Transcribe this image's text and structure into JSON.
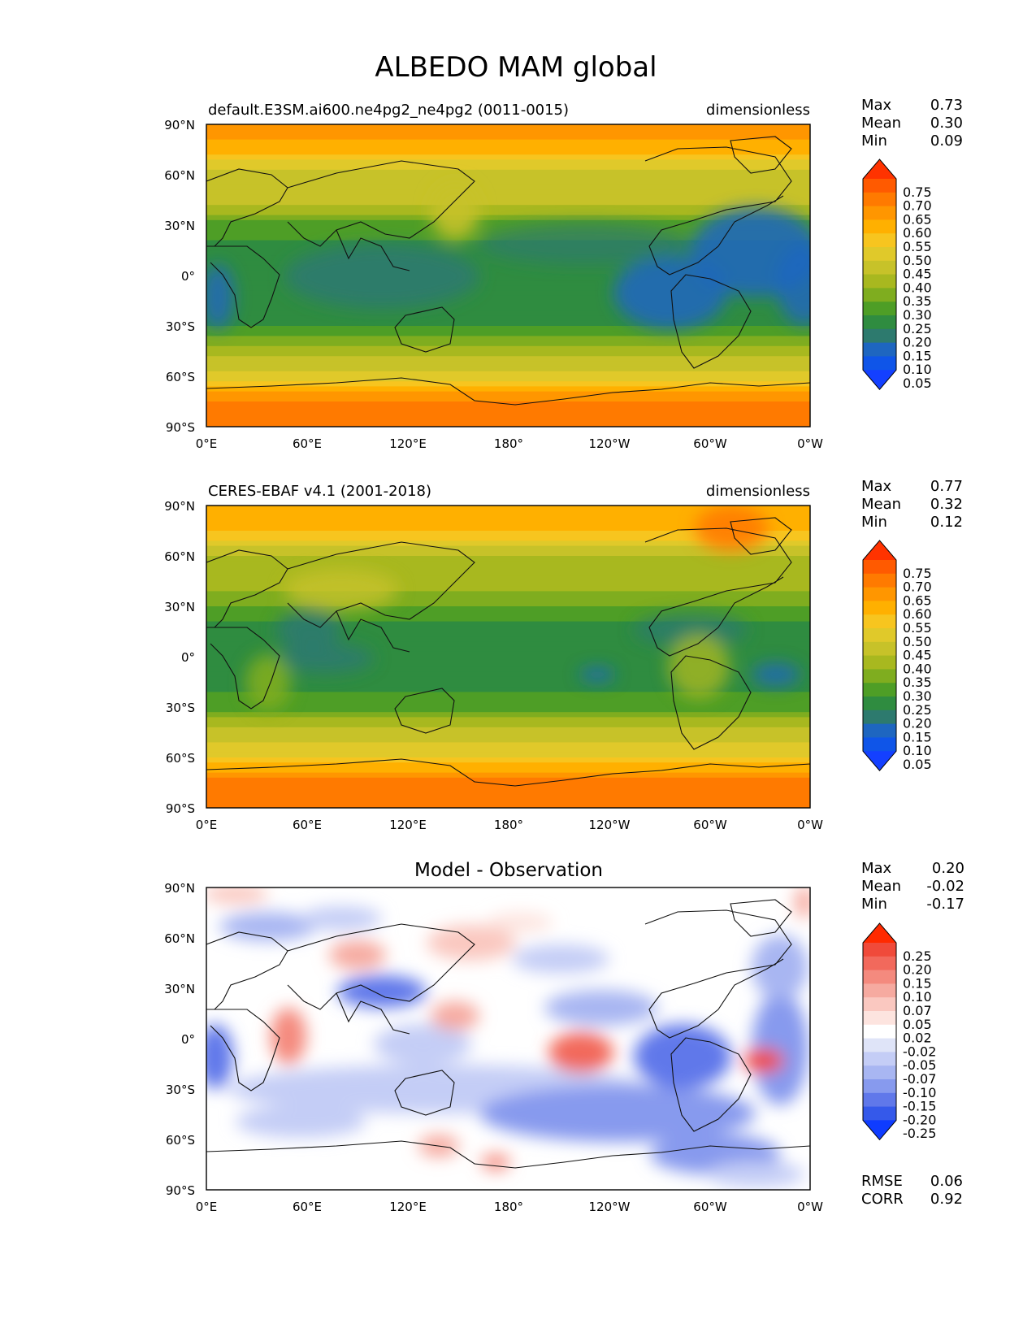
{
  "figure": {
    "title": "ALBEDO MAM global"
  },
  "axes": {
    "lat_labels": [
      "90°N",
      "60°N",
      "30°N",
      "0°",
      "30°S",
      "60°S",
      "90°S"
    ],
    "lon_labels": [
      "0°E",
      "60°E",
      "120°E",
      "180°",
      "120°W",
      "60°W",
      "0°W"
    ]
  },
  "chart_data": [
    {
      "type": "heatmap",
      "title": "default.E3SM.ai600.ne4pg2_ne4pg2 (0011-0015)",
      "units": "dimensionless",
      "xlabel": "",
      "ylabel": "",
      "xlim": [
        0,
        360
      ],
      "ylim": [
        -90,
        90
      ],
      "stats": [
        {
          "label": "Max",
          "value": "0.73"
        },
        {
          "label": "Mean",
          "value": "0.30"
        },
        {
          "label": "Min",
          "value": "0.09"
        }
      ],
      "colorbar": {
        "levels": [
          "0.75",
          "0.70",
          "0.65",
          "0.60",
          "0.55",
          "0.50",
          "0.45",
          "0.40",
          "0.35",
          "0.30",
          "0.25",
          "0.20",
          "0.15",
          "0.10",
          "0.05"
        ],
        "colors": [
          "#ff3300",
          "#ff5a00",
          "#ff7a00",
          "#ff9600",
          "#ffb000",
          "#f7c51f",
          "#e0c92a",
          "#c7c229",
          "#a8b81f",
          "#7fad1f",
          "#4e9e26",
          "#2f8c40",
          "#2d7a6e",
          "#1e66c0",
          "#0f55e8",
          "#1440ff"
        ]
      },
      "zonal_albedo": [
        {
          "lat": 90,
          "v": 0.62
        },
        {
          "lat": 75,
          "v": 0.58
        },
        {
          "lat": 60,
          "v": 0.4
        },
        {
          "lat": 45,
          "v": 0.42
        },
        {
          "lat": 30,
          "v": 0.28
        },
        {
          "lat": 15,
          "v": 0.22
        },
        {
          "lat": 0,
          "v": 0.24
        },
        {
          "lat": -15,
          "v": 0.22
        },
        {
          "lat": -30,
          "v": 0.25
        },
        {
          "lat": -45,
          "v": 0.38
        },
        {
          "lat": -60,
          "v": 0.48
        },
        {
          "lat": -75,
          "v": 0.66
        },
        {
          "lat": -90,
          "v": 0.69
        }
      ]
    },
    {
      "type": "heatmap",
      "title": "CERES-EBAF v4.1 (2001-2018)",
      "units": "dimensionless",
      "xlabel": "",
      "ylabel": "",
      "xlim": [
        0,
        360
      ],
      "ylim": [
        -90,
        90
      ],
      "stats": [
        {
          "label": "Max",
          "value": "0.77"
        },
        {
          "label": "Mean",
          "value": "0.32"
        },
        {
          "label": "Min",
          "value": "0.12"
        }
      ],
      "colorbar": {
        "levels": [
          "0.75",
          "0.70",
          "0.65",
          "0.60",
          "0.55",
          "0.50",
          "0.45",
          "0.40",
          "0.35",
          "0.30",
          "0.25",
          "0.20",
          "0.15",
          "0.10",
          "0.05"
        ],
        "colors": [
          "#ff3300",
          "#ff5a00",
          "#ff7a00",
          "#ff9600",
          "#ffb000",
          "#f7c51f",
          "#e0c92a",
          "#c7c229",
          "#a8b81f",
          "#7fad1f",
          "#4e9e26",
          "#2f8c40",
          "#2d7a6e",
          "#1e66c0",
          "#0f55e8",
          "#1440ff"
        ]
      },
      "zonal_albedo": [
        {
          "lat": 90,
          "v": 0.6
        },
        {
          "lat": 75,
          "v": 0.56
        },
        {
          "lat": 60,
          "v": 0.4
        },
        {
          "lat": 45,
          "v": 0.38
        },
        {
          "lat": 30,
          "v": 0.3
        },
        {
          "lat": 15,
          "v": 0.22
        },
        {
          "lat": 0,
          "v": 0.24
        },
        {
          "lat": -15,
          "v": 0.22
        },
        {
          "lat": -30,
          "v": 0.28
        },
        {
          "lat": -45,
          "v": 0.42
        },
        {
          "lat": -60,
          "v": 0.5
        },
        {
          "lat": -75,
          "v": 0.67
        },
        {
          "lat": -90,
          "v": 0.7
        }
      ]
    },
    {
      "type": "heatmap",
      "title": "Model - Observation",
      "units": "",
      "xlabel": "",
      "ylabel": "",
      "xlim": [
        0,
        360
      ],
      "ylim": [
        -90,
        90
      ],
      "stats": [
        {
          "label": "Max",
          "value": "0.20"
        },
        {
          "label": "Mean",
          "value": "-0.02"
        },
        {
          "label": "Min",
          "value": "-0.17"
        }
      ],
      "metrics": [
        {
          "label": "RMSE",
          "value": "0.06"
        },
        {
          "label": "CORR",
          "value": "0.92"
        }
      ],
      "colorbar": {
        "levels": [
          "0.25",
          "0.20",
          "0.15",
          "0.10",
          "0.07",
          "0.05",
          "0.02",
          "-0.02",
          "-0.05",
          "-0.07",
          "-0.10",
          "-0.15",
          "-0.20",
          "-0.25"
        ],
        "colors": [
          "#ff2a00",
          "#f04a3a",
          "#f2695c",
          "#f48a7e",
          "#f6aaa0",
          "#fac8c0",
          "#fde4df",
          "#ffffff",
          "#dfe4f8",
          "#c4cdf6",
          "#a8b6f2",
          "#879aee",
          "#6078ea",
          "#3559ea",
          "#0f3cff"
        ]
      }
    }
  ]
}
